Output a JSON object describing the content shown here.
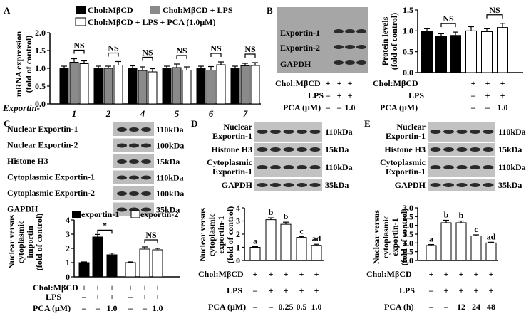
{
  "colors": {
    "black": "#000000",
    "grey": "#8a8a8a",
    "white": "#ffffff",
    "blot_bg": "#9c9c9c",
    "band": "#2a2a2a"
  },
  "panelA": {
    "letter": "A",
    "legend": [
      "Chol:MβCD",
      "Chol:MβCD + LPS",
      "Chol:MβCD + LPS + PCA (1.0μM)"
    ],
    "ylabel": "mRNA expression",
    "ylabel2": "(fold of control)",
    "xtitle": "Exportin-",
    "sig": "NS"
  },
  "panelB": {
    "letter": "B",
    "blot_labels": [
      "Exportin-1",
      "Exportin-2",
      "GAPDH"
    ],
    "ylabel": "Protein levels",
    "ylabel2": "(fold of control)",
    "treat_labels": [
      "Chol:MβCD",
      "LPS",
      "PCA (μM)"
    ],
    "treat_rows": [
      [
        "+",
        "+",
        "+"
      ],
      [
        "",
        "+",
        "+"
      ],
      [
        "–",
        "–",
        "1.0"
      ]
    ],
    "sig": "NS"
  },
  "panelC": {
    "letter": "C",
    "blot_labels": [
      "Nuclear Exportin-1",
      "Nuclear Exportin-2",
      "Histone H3",
      "Cytoplasmic Exportin-1",
      "Cytoplasmic Exportin-2",
      "GAPDH"
    ],
    "kda": [
      "110kDa",
      "100kDa",
      "15kDa",
      "110kDa",
      "100kDa",
      "35kDa"
    ],
    "legend": [
      "exportin-1",
      "exportin-2"
    ],
    "ylabel": [
      "Nuclear versus",
      "cytoplasmic",
      "importin",
      "(fold  of  control)"
    ],
    "treat_labels": [
      "Chol:MβCD",
      "LPS",
      "PCA (μM)"
    ],
    "treat_rows": [
      [
        "+",
        "+",
        "+",
        "+",
        "+",
        "+"
      ],
      [
        "–",
        "+",
        "+",
        "–",
        "+",
        "+"
      ],
      [
        "–",
        "–",
        "1.0",
        "–",
        "–",
        "1.0"
      ]
    ],
    "sig_star": "*",
    "sig_ns": "NS"
  },
  "panelD": {
    "letter": "D",
    "blot_labels": [
      "Nuclear",
      "Exportin-1",
      "Histone H3",
      "Cytoplasmic",
      "Exportin-1",
      "GAPDH"
    ],
    "kda": [
      "110kDa",
      "15kDa",
      "110kDa",
      "35kDa"
    ],
    "ylabel": [
      "Nuclear versus",
      "cytoplasmic",
      "exportin-1",
      "(fold  of  control)"
    ],
    "treat_labels": [
      "Chol:MβCD",
      "LPS",
      "PCA (μM)"
    ],
    "treat_rows": [
      [
        "+",
        "+",
        "+",
        "+",
        "+"
      ],
      [
        "–",
        "+",
        "+",
        "+",
        "+"
      ],
      [
        "–",
        "–",
        "0.25",
        "0.5",
        "1.0"
      ]
    ],
    "letters": [
      "a",
      "b",
      "b",
      "c",
      "ad"
    ]
  },
  "panelE": {
    "letter": "E",
    "blot_labels": [
      "Nuclear",
      "Exportin-1",
      "Histone H3",
      "Cytoplasmic",
      "Exportin-1",
      "GAPDH"
    ],
    "kda": [
      "110kDa",
      "15kDa",
      "110kDa",
      "35kDa"
    ],
    "ylabel": [
      "Nuclear versus",
      "cytoplasmic",
      "exportin-1",
      "(fold  of  control)"
    ],
    "treat_labels": [
      "Chol:MβCD",
      "LPS",
      "PCA (h)"
    ],
    "treat_rows": [
      [
        "+",
        "+",
        "+",
        "+",
        "+"
      ],
      [
        "–",
        "+",
        "+",
        "+",
        "+"
      ],
      [
        "–",
        "–",
        "12",
        "24",
        "48"
      ]
    ],
    "letters": [
      "a",
      "b",
      "b",
      "c",
      "ad"
    ]
  },
  "chart_data": [
    {
      "panel": "A",
      "type": "bar",
      "categories": [
        "1",
        "2",
        "4",
        "5",
        "6",
        "7"
      ],
      "series": [
        {
          "name": "Chol:MβCD",
          "values": [
            1.0,
            1.0,
            1.0,
            1.0,
            1.0,
            1.0
          ],
          "errors": [
            0.06,
            0.06,
            0.07,
            0.06,
            0.06,
            0.06
          ]
        },
        {
          "name": "Chol:MβCD + LPS",
          "values": [
            1.17,
            1.0,
            0.94,
            1.02,
            0.95,
            1.07
          ],
          "errors": [
            0.1,
            0.06,
            0.1,
            0.1,
            0.1,
            0.07
          ]
        },
        {
          "name": "Chol:MβCD + LPS + PCA (1.0μM)",
          "values": [
            1.13,
            1.09,
            0.9,
            0.95,
            1.1,
            1.08
          ],
          "errors": [
            0.08,
            0.1,
            0.09,
            0.09,
            0.08,
            0.08
          ]
        }
      ],
      "ylim": [
        0,
        2.0
      ],
      "yticks": [
        0.0,
        0.5,
        1.0,
        1.5,
        2.0
      ]
    },
    {
      "panel": "B",
      "type": "bar",
      "categories": [
        "Exportin-1: Chol:MβCD",
        "Exportin-1: + LPS",
        "Exportin-1: + LPS + PCA 1.0",
        "Exportin-2: Chol:MβCD",
        "Exportin-2: + LPS",
        "Exportin-2: + LPS + PCA 1.0"
      ],
      "values": [
        0.98,
        0.87,
        0.89,
        1.0,
        0.98,
        1.08
      ],
      "errors": [
        0.07,
        0.06,
        0.08,
        0.1,
        0.07,
        0.1
      ],
      "ylim": [
        0,
        1.5
      ],
      "yticks": [
        0.0,
        0.5,
        1.0,
        1.5
      ]
    },
    {
      "panel": "C",
      "type": "bar",
      "series": [
        {
          "name": "exportin-1",
          "values": [
            1.0,
            2.8,
            1.55
          ],
          "errors": [
            0.05,
            0.18,
            0.12
          ]
        },
        {
          "name": "exportin-2",
          "values": [
            1.0,
            1.95,
            1.9
          ],
          "errors": [
            0.05,
            0.15,
            0.1
          ]
        }
      ],
      "ylim": [
        0,
        4
      ],
      "yticks": [
        0,
        1,
        2,
        3,
        4
      ]
    },
    {
      "panel": "D",
      "type": "bar",
      "values": [
        1.0,
        3.1,
        2.75,
        1.75,
        1.15
      ],
      "errors": [
        0.05,
        0.14,
        0.16,
        0.07,
        0.08
      ],
      "ylim": [
        0,
        4
      ],
      "yticks": [
        0,
        1,
        2,
        3,
        4
      ]
    },
    {
      "panel": "E",
      "type": "bar",
      "values": [
        0.85,
        2.15,
        2.15,
        1.4,
        1.0
      ],
      "errors": [
        0.06,
        0.14,
        0.1,
        0.06,
        0.04
      ],
      "ylim": [
        0,
        3.0
      ],
      "yticks": [
        0.0,
        0.5,
        1.0,
        1.5,
        2.0,
        2.5,
        3.0
      ]
    }
  ]
}
